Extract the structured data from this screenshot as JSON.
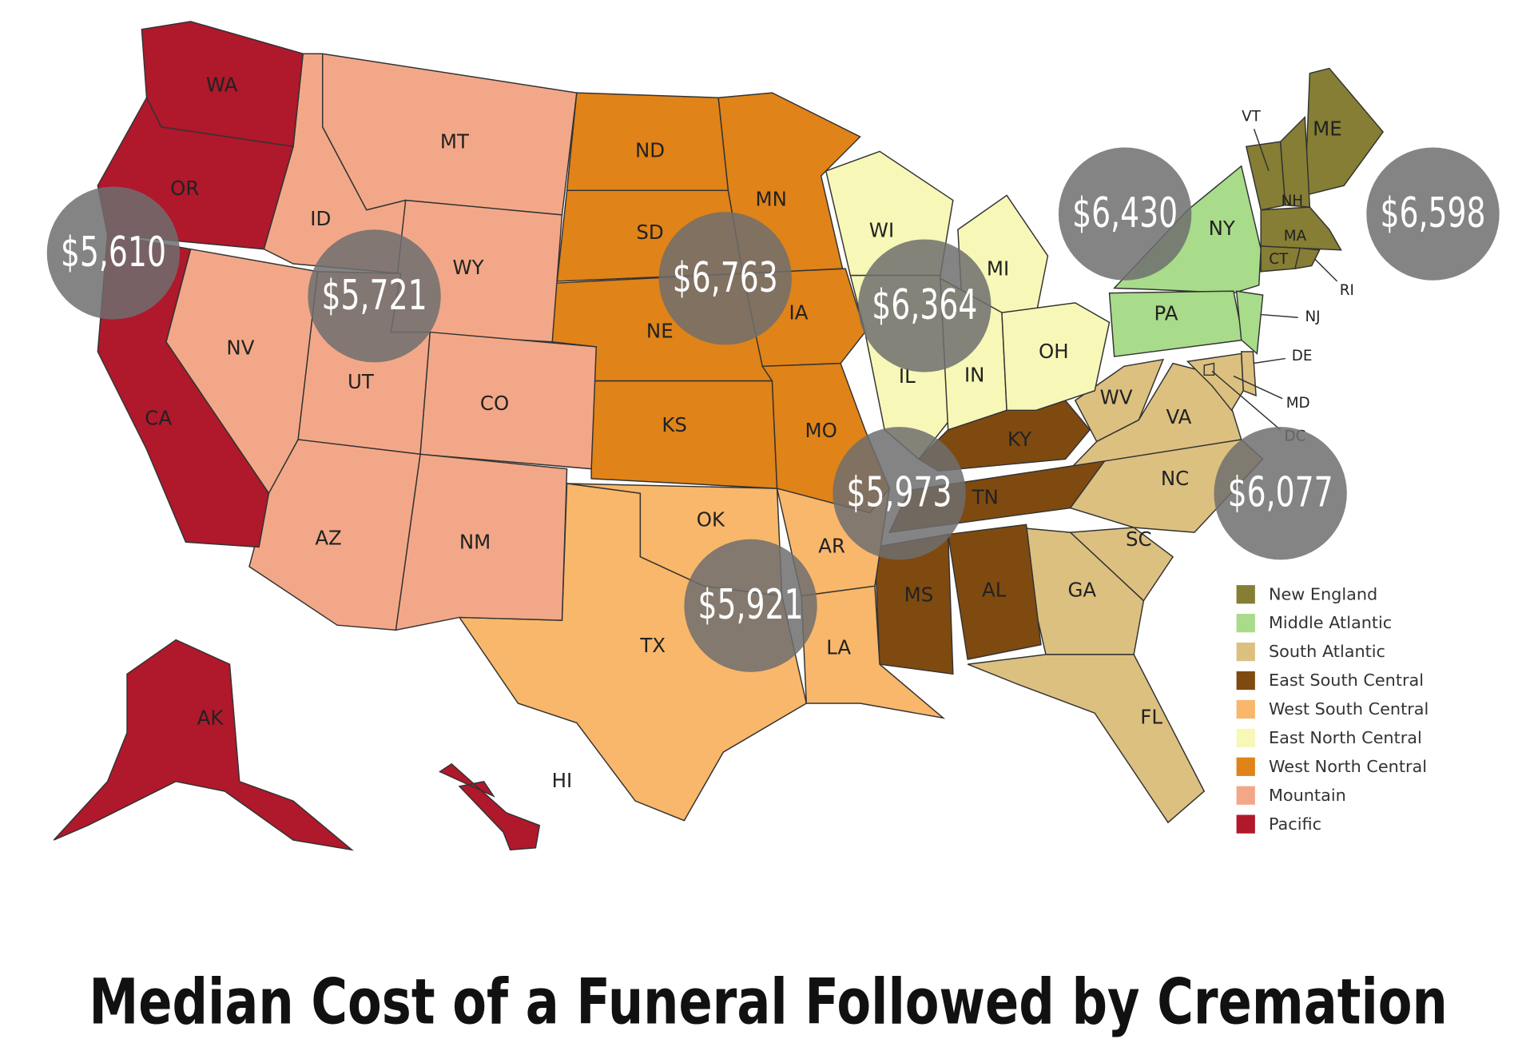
{
  "title": "Median Cost of a Funeral Followed by Cremation",
  "regions": [
    {
      "name": "New England",
      "color": "#857e34",
      "cost": "$6,598",
      "states": [
        "ME",
        "VT",
        "NH",
        "MA",
        "CT",
        "RI"
      ]
    },
    {
      "name": "Middle Atlantic",
      "color": "#a8db8a",
      "cost": "$6,430",
      "states": [
        "NY",
        "PA",
        "NJ"
      ]
    },
    {
      "name": "South Atlantic",
      "color": "#dcc080",
      "cost": "$6,077",
      "states": [
        "WV",
        "VA",
        "NC",
        "SC",
        "GA",
        "FL",
        "DE",
        "MD",
        "DC"
      ]
    },
    {
      "name": "East South Central",
      "color": "#7f4a10",
      "cost": "$5,973",
      "states": [
        "KY",
        "TN",
        "MS",
        "AL"
      ]
    },
    {
      "name": "West South Central",
      "color": "#f8b76a",
      "cost": "$5,921",
      "states": [
        "OK",
        "TX",
        "AR",
        "LA"
      ]
    },
    {
      "name": "East North Central",
      "color": "#f7f7b8",
      "cost": "$6,364",
      "states": [
        "WI",
        "MI",
        "IL",
        "IN",
        "OH"
      ]
    },
    {
      "name": "West North Central",
      "color": "#e08318",
      "cost": "$6,763",
      "states": [
        "ND",
        "SD",
        "NE",
        "KS",
        "MN",
        "IA",
        "MO"
      ]
    },
    {
      "name": "Mountain",
      "color": "#f2a888",
      "cost": "$5,721",
      "states": [
        "MT",
        "ID",
        "WY",
        "NV",
        "UT",
        "CO",
        "AZ",
        "NM"
      ]
    },
    {
      "name": "Pacific",
      "color": "#b0182b",
      "cost": "$5,610",
      "states": [
        "WA",
        "OR",
        "CA",
        "AK",
        "HI"
      ]
    }
  ]
}
